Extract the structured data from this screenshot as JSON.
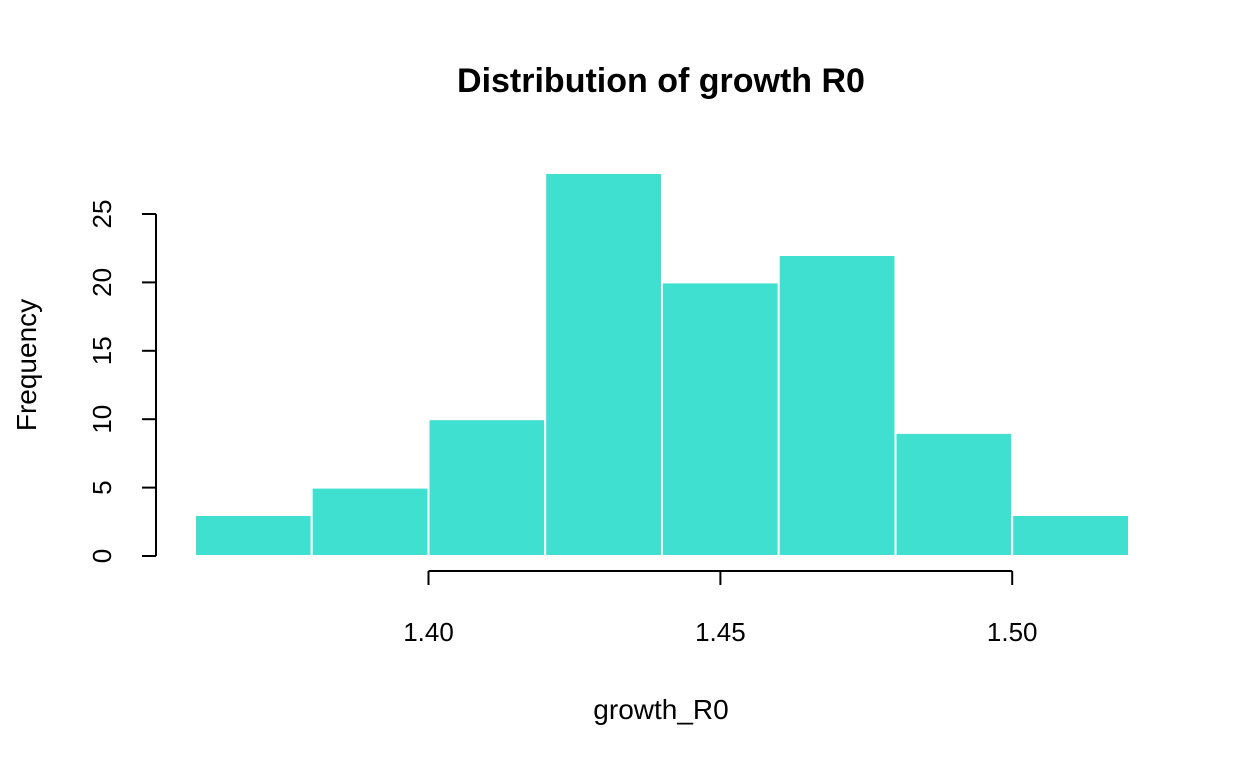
{
  "chart_data": {
    "type": "bar",
    "subtype": "histogram",
    "title": "Distribution of growth R0",
    "xlabel": "growth_R0",
    "ylabel": "Frequency",
    "bar_color": "#40E0D0",
    "bar_border_color": "#ffffff",
    "bins": [
      {
        "start": 1.36,
        "end": 1.38,
        "count": 3
      },
      {
        "start": 1.38,
        "end": 1.4,
        "count": 5
      },
      {
        "start": 1.4,
        "end": 1.42,
        "count": 10
      },
      {
        "start": 1.42,
        "end": 1.44,
        "count": 28
      },
      {
        "start": 1.44,
        "end": 1.46,
        "count": 20
      },
      {
        "start": 1.46,
        "end": 1.48,
        "count": 22
      },
      {
        "start": 1.48,
        "end": 1.5,
        "count": 9
      },
      {
        "start": 1.5,
        "end": 1.52,
        "count": 3
      }
    ],
    "xlim": [
      1.36,
      1.52
    ],
    "ylim": [
      0,
      28
    ],
    "x_ticks": [
      1.4,
      1.45,
      1.5
    ],
    "x_tick_labels": [
      "1.40",
      "1.45",
      "1.50"
    ],
    "y_ticks": [
      0,
      5,
      10,
      15,
      20,
      25
    ],
    "y_tick_labels": [
      "0",
      "5",
      "10",
      "15",
      "20",
      "25"
    ],
    "grid": false,
    "legend": "none"
  }
}
